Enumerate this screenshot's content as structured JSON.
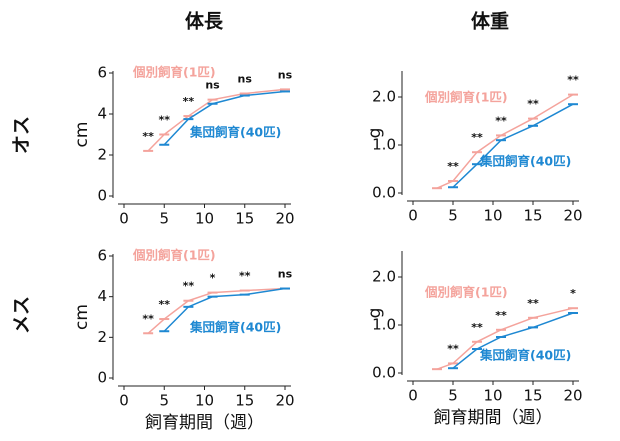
{
  "column_titles": [
    "体長",
    "体重"
  ],
  "row_labels": [
    "オス",
    "メス"
  ],
  "chart_data": [
    {
      "type": "line",
      "ylabel": "cm",
      "x": [
        3,
        5,
        8,
        11,
        15,
        20
      ],
      "xlim": [
        0,
        20
      ],
      "xticks": [
        0,
        5,
        10,
        15,
        20
      ],
      "ylim": [
        0,
        6
      ],
      "yticks": [
        0,
        2,
        4,
        6
      ],
      "series": [
        {
          "name": "個別飼育(1匹)",
          "color": "#f4a39c",
          "values": [
            2.2,
            3.0,
            3.9,
            4.7,
            5.0,
            5.2
          ]
        },
        {
          "name": "集団飼育(40匹)",
          "color": "#1e88d2",
          "values": [
            null,
            2.5,
            3.75,
            4.5,
            4.9,
            5.1
          ]
        }
      ],
      "annotations": [
        {
          "x": 3,
          "text": "**"
        },
        {
          "x": 5,
          "text": "**"
        },
        {
          "x": 8,
          "text": "**"
        },
        {
          "x": 11,
          "text": "ns"
        },
        {
          "x": 15,
          "text": "ns"
        },
        {
          "x": 20,
          "text": "ns"
        }
      ]
    },
    {
      "type": "line",
      "ylabel": "g",
      "x": [
        3,
        5,
        8,
        11,
        15,
        20
      ],
      "xlim": [
        0,
        20
      ],
      "xticks": [
        0,
        5,
        10,
        15,
        20
      ],
      "ylim": [
        0,
        2.5
      ],
      "yticks": [
        {
          "value": 0,
          "label": "0.0"
        },
        {
          "value": 1,
          "label": "1.0"
        },
        {
          "value": 2,
          "label": "2.0"
        }
      ],
      "series": [
        {
          "name": "個別飼育(1匹)",
          "color": "#f4a39c",
          "values": [
            0.1,
            0.25,
            0.85,
            1.2,
            1.55,
            2.05
          ]
        },
        {
          "name": "集団飼育(40匹)",
          "color": "#1e88d2",
          "values": [
            null,
            0.12,
            0.6,
            1.1,
            1.4,
            1.85
          ]
        }
      ],
      "annotations": [
        {
          "x": 5,
          "text": "**"
        },
        {
          "x": 8,
          "text": "**"
        },
        {
          "x": 11,
          "text": "**"
        },
        {
          "x": 15,
          "text": "**"
        },
        {
          "x": 20,
          "text": "**"
        }
      ]
    },
    {
      "type": "line",
      "ylabel": "cm",
      "xlabel": "飼育期間（週）",
      "x": [
        3,
        5,
        8,
        11,
        15,
        20
      ],
      "xlim": [
        0,
        20
      ],
      "xticks": [
        0,
        5,
        10,
        15,
        20
      ],
      "ylim": [
        0,
        6
      ],
      "yticks": [
        0,
        2,
        4,
        6
      ],
      "series": [
        {
          "name": "個別飼育(1匹)",
          "color": "#f4a39c",
          "values": [
            2.2,
            2.9,
            3.8,
            4.2,
            4.3,
            4.4
          ]
        },
        {
          "name": "集団飼育(40匹)",
          "color": "#1e88d2",
          "values": [
            null,
            2.3,
            3.5,
            4.0,
            4.1,
            4.4
          ]
        }
      ],
      "annotations": [
        {
          "x": 3,
          "text": "**"
        },
        {
          "x": 5,
          "text": "**"
        },
        {
          "x": 8,
          "text": "**"
        },
        {
          "x": 11,
          "text": "*"
        },
        {
          "x": 15,
          "text": "**"
        },
        {
          "x": 20,
          "text": "ns"
        }
      ]
    },
    {
      "type": "line",
      "ylabel": "g",
      "xlabel": "飼育期間（週）",
      "x": [
        3,
        5,
        8,
        11,
        15,
        20
      ],
      "xlim": [
        0,
        20
      ],
      "xticks": [
        0,
        5,
        10,
        15,
        20
      ],
      "ylim": [
        0,
        2.5
      ],
      "yticks": [
        {
          "value": 0,
          "label": "0.0"
        },
        {
          "value": 1,
          "label": "1.0"
        },
        {
          "value": 2,
          "label": "2.0"
        }
      ],
      "series": [
        {
          "name": "個別飼育(1匹)",
          "color": "#f4a39c",
          "values": [
            0.08,
            0.2,
            0.65,
            0.9,
            1.15,
            1.35
          ]
        },
        {
          "name": "集団飼育(40匹)",
          "color": "#1e88d2",
          "values": [
            null,
            0.1,
            0.5,
            0.75,
            0.95,
            1.25
          ]
        }
      ],
      "annotations": [
        {
          "x": 5,
          "text": "**"
        },
        {
          "x": 8,
          "text": "**"
        },
        {
          "x": 11,
          "text": "**"
        },
        {
          "x": 15,
          "text": "**"
        },
        {
          "x": 20,
          "text": "*"
        }
      ]
    }
  ]
}
